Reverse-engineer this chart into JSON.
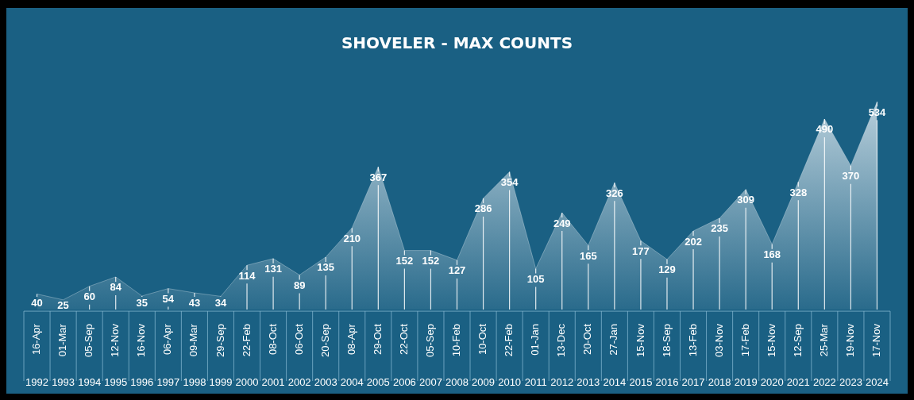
{
  "chart_data": {
    "type": "area",
    "title": "SHOVELER - MAX COUNTS",
    "categories": [
      "16-Apr 1992",
      "01-Mar 1993",
      "05-Sep 1994",
      "12-Nov 1995",
      "16-Nov 1996",
      "06-Apr 1997",
      "09-Mar 1998",
      "29-Sep 1999",
      "22-Feb 2000",
      "08-Oct 2001",
      "06-Oct 2002",
      "20-Sep 2003",
      "08-Apr 2004",
      "29-Oct 2005",
      "22-Oct 2006",
      "05-Sep 2007",
      "10-Feb 2008",
      "10-Oct 2009",
      "22-Feb 2010",
      "01-Jan 2011",
      "13-Dec 2012",
      "20-Oct 2013",
      "27-Jan 2014",
      "15-Nov 2015",
      "18-Sep 2016",
      "13-Feb 2017",
      "03-Nov 2018",
      "17-Feb 2019",
      "15-Nov 2020",
      "12-Sep 2021",
      "25-Mar 2022",
      "19-Nov 2023",
      "17-Nov 2024"
    ],
    "values": [
      40,
      25,
      60,
      84,
      35,
      54,
      43,
      34,
      114,
      131,
      89,
      135,
      210,
      367,
      152,
      152,
      127,
      286,
      354,
      105,
      249,
      165,
      326,
      177,
      129,
      202,
      235,
      309,
      168,
      328,
      490,
      370,
      534
    ],
    "color": "#dce8ef",
    "data_labels": true,
    "legend": false,
    "grid": false
  }
}
